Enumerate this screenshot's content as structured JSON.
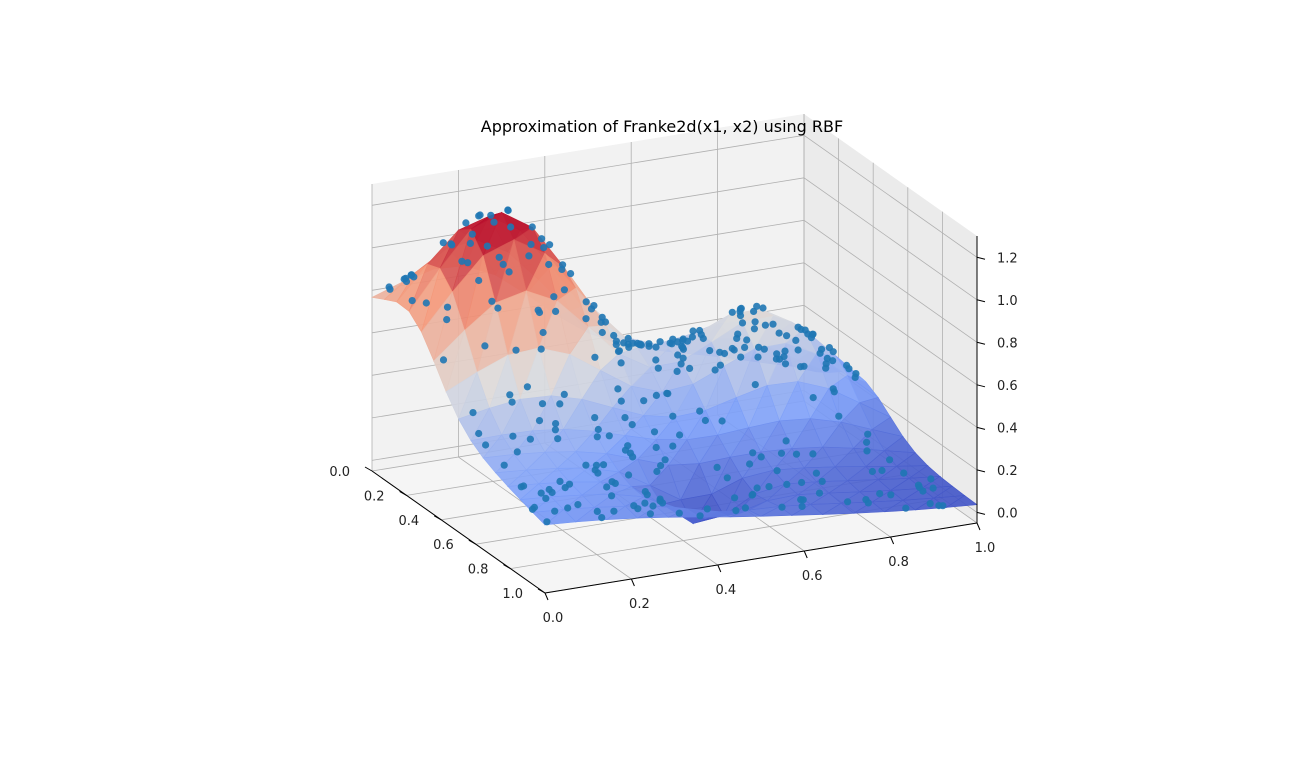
{
  "chart_data": {
    "type": "surface3d",
    "title": "Approximation of Franke2d(x1, x2) using RBF",
    "xlabel": "",
    "ylabel": "",
    "zlabel": "",
    "x_axis": {
      "range": [
        0,
        1
      ],
      "ticks": [
        "0.0",
        "0.2",
        "0.4",
        "0.6",
        "0.8",
        "1.0"
      ]
    },
    "y_axis": {
      "range": [
        0,
        1
      ],
      "ticks": [
        "0.0",
        "0.2",
        "0.4",
        "0.6",
        "0.8",
        "1.0"
      ]
    },
    "z_axis": {
      "range": [
        -0.05,
        1.3
      ],
      "ticks": [
        "0.0",
        "0.2",
        "0.4",
        "0.6",
        "0.8",
        "1.0",
        "1.2"
      ]
    },
    "colormap": "coolwarm",
    "surface": "triangulated RBF approximation of Franke's function over [0,1]x[0,1]",
    "samples": {
      "marker": "circle",
      "color": "#1f77b4",
      "count_approx": 300
    },
    "grid": true
  }
}
